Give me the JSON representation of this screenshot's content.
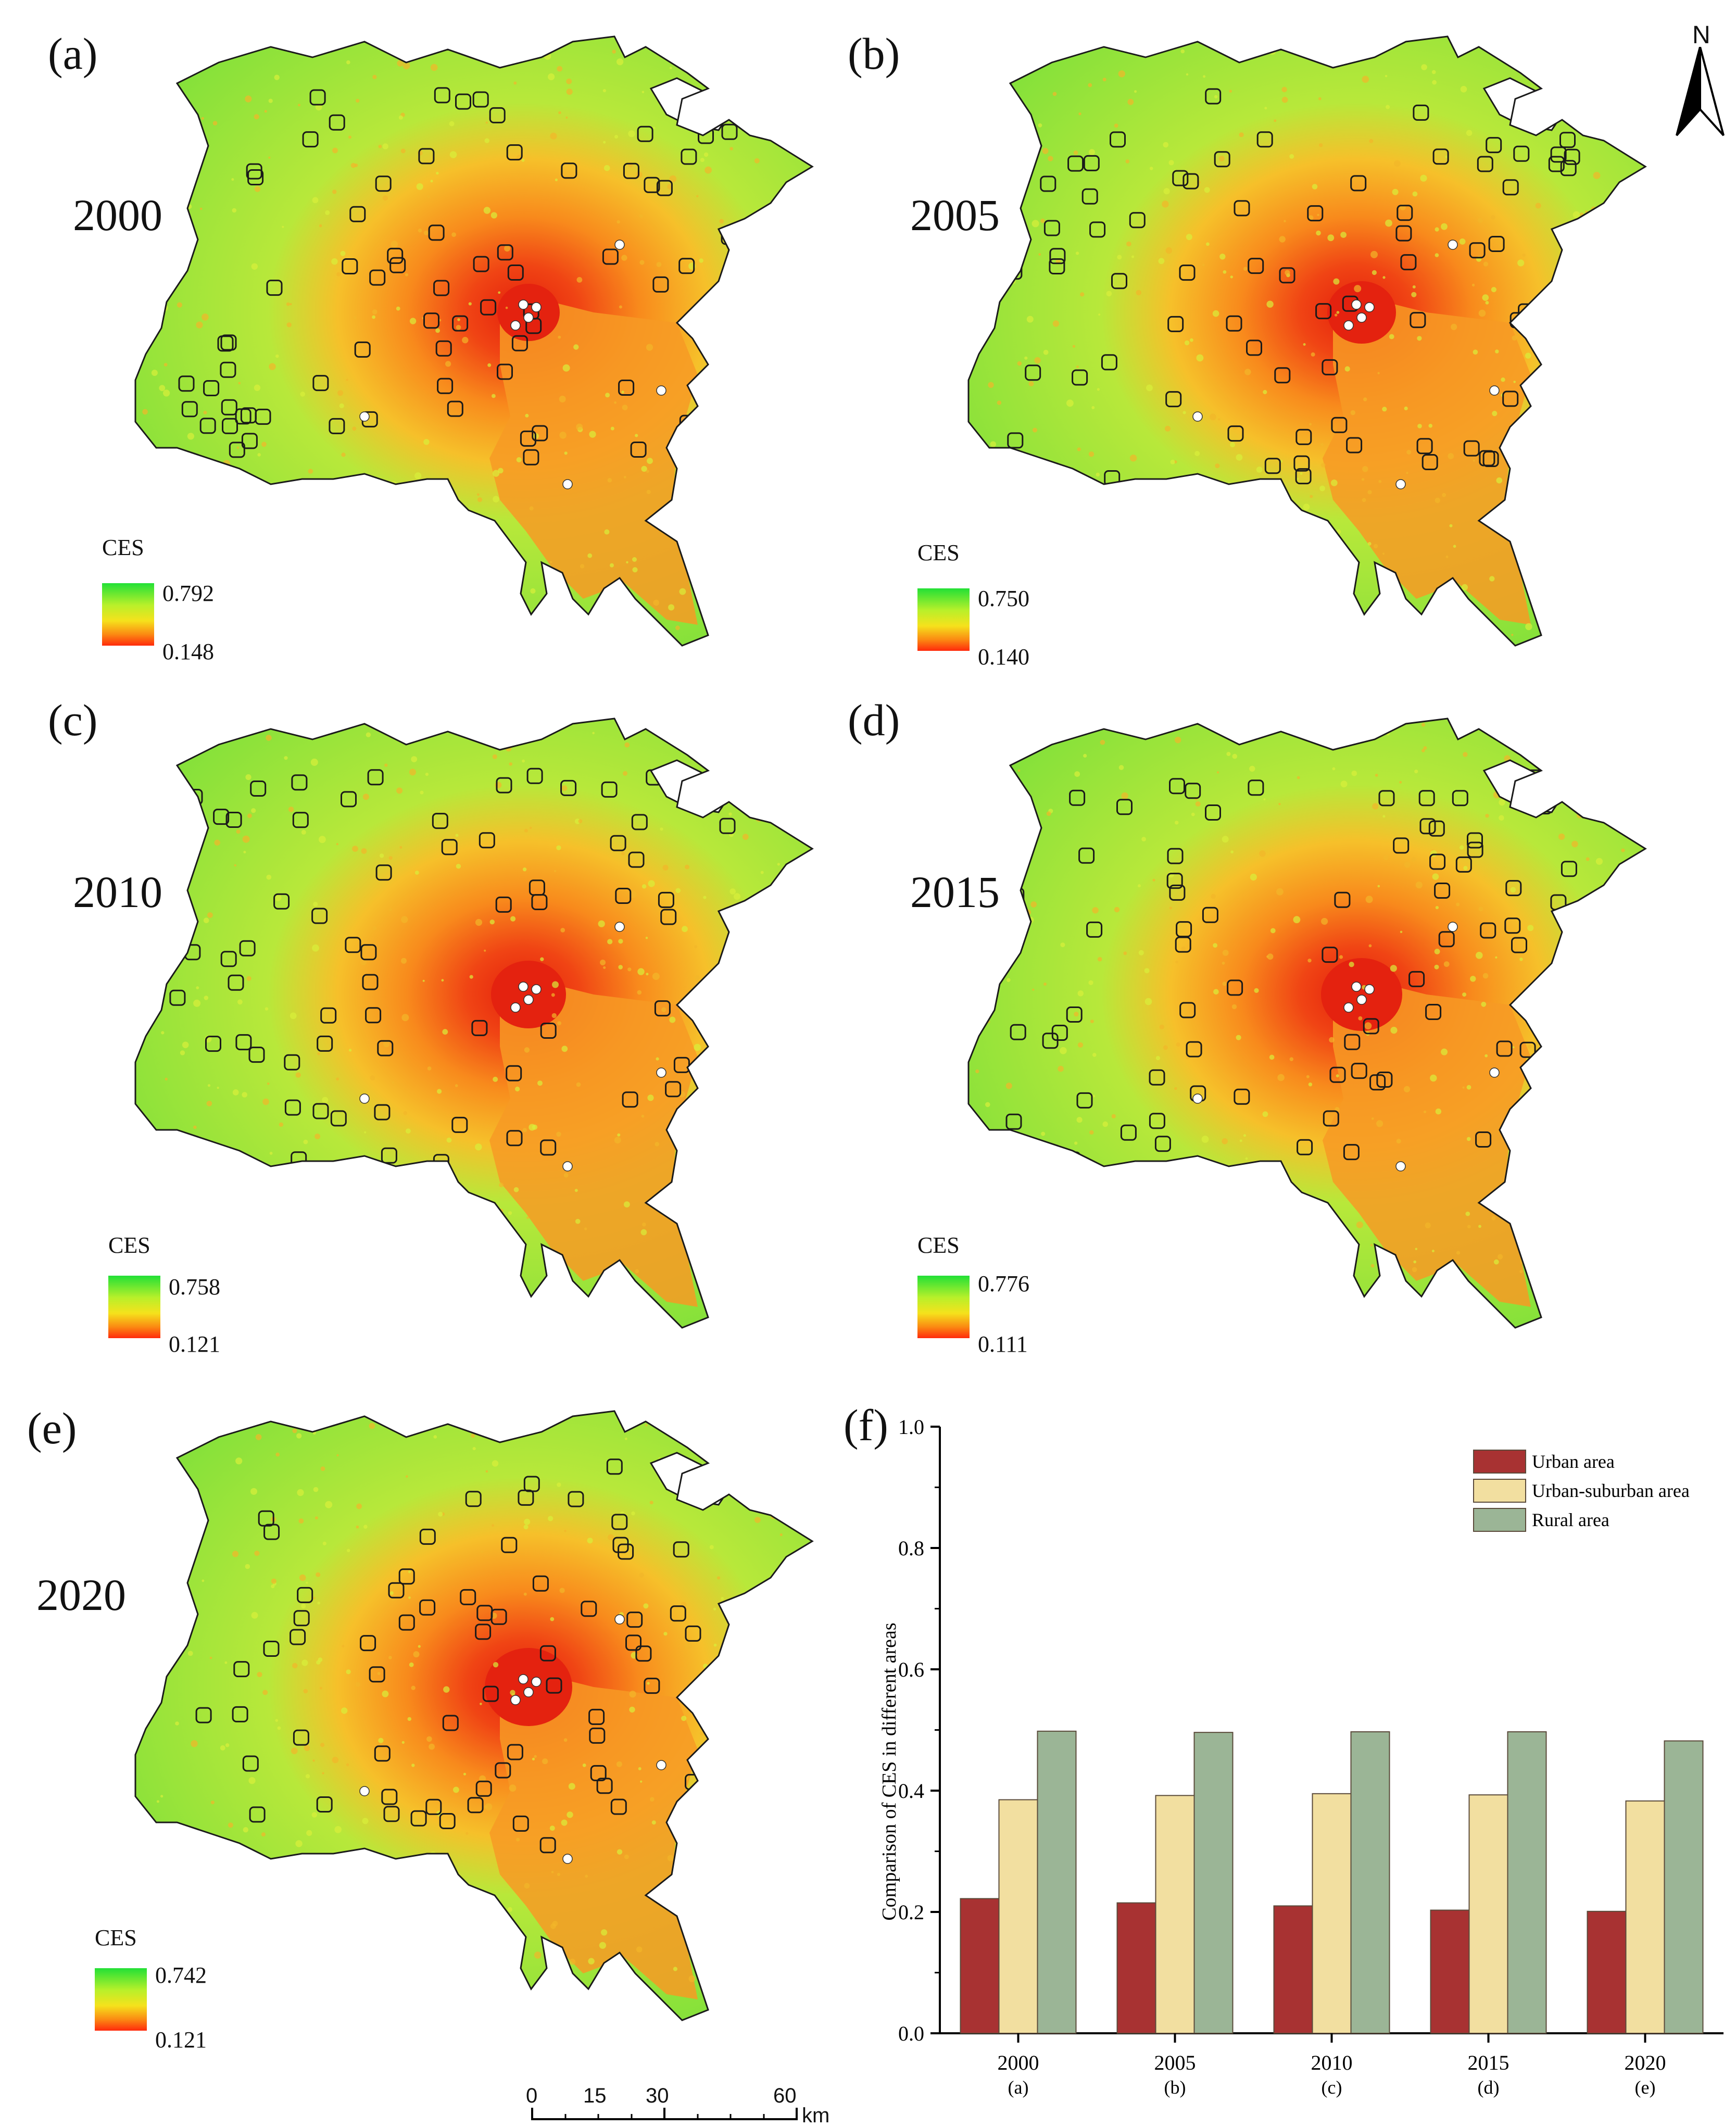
{
  "panels": [
    {
      "letter": "(a)",
      "year": "2000",
      "legend_title": "CES",
      "max": "0.792",
      "min": "0.148"
    },
    {
      "letter": "(b)",
      "year": "2005",
      "legend_title": "CES",
      "max": "0.750",
      "min": "0.140"
    },
    {
      "letter": "(c)",
      "year": "2010",
      "legend_title": "CES",
      "max": "0.758",
      "min": "0.121"
    },
    {
      "letter": "(d)",
      "year": "2015",
      "legend_title": "CES",
      "max": "0.776",
      "min": "0.111"
    },
    {
      "letter": "(e)",
      "year": "2020",
      "legend_title": "CES",
      "max": "0.742",
      "min": "0.121"
    }
  ],
  "north_arrow": {
    "label": "N"
  },
  "scale_bar": {
    "ticks": [
      "0",
      "15",
      "30",
      "60"
    ],
    "unit": "km"
  },
  "colors": {
    "ces_high": "#22e036",
    "ces_mid": "#f5e21c",
    "ces_low": "#ff2a0c",
    "boundary": "#1a1a1a"
  },
  "chart_data": {
    "type": "bar",
    "panel_letter": "(f)",
    "ylabel": "Comparison of CES in different areas",
    "xlabel": "",
    "ylim": [
      0,
      1.0
    ],
    "yticks": [
      "0.0",
      "0.2",
      "0.4",
      "0.6",
      "0.8",
      "1.0"
    ],
    "categories": [
      "2000",
      "2005",
      "2010",
      "2015",
      "2020"
    ],
    "category_sublabels": [
      "(a)",
      "(b)",
      "(c)",
      "(d)",
      "(e)"
    ],
    "legend_position": "top-right",
    "series": [
      {
        "name": "Urban area",
        "color": "#a83232",
        "values": [
          0.222,
          0.215,
          0.21,
          0.203,
          0.201
        ]
      },
      {
        "name": "Urban-suburban area",
        "color": "#f2dfa0",
        "values": [
          0.385,
          0.392,
          0.395,
          0.393,
          0.383
        ]
      },
      {
        "name": "Rural area",
        "color": "#9bb596",
        "values": [
          0.498,
          0.496,
          0.497,
          0.497,
          0.482
        ]
      }
    ]
  }
}
